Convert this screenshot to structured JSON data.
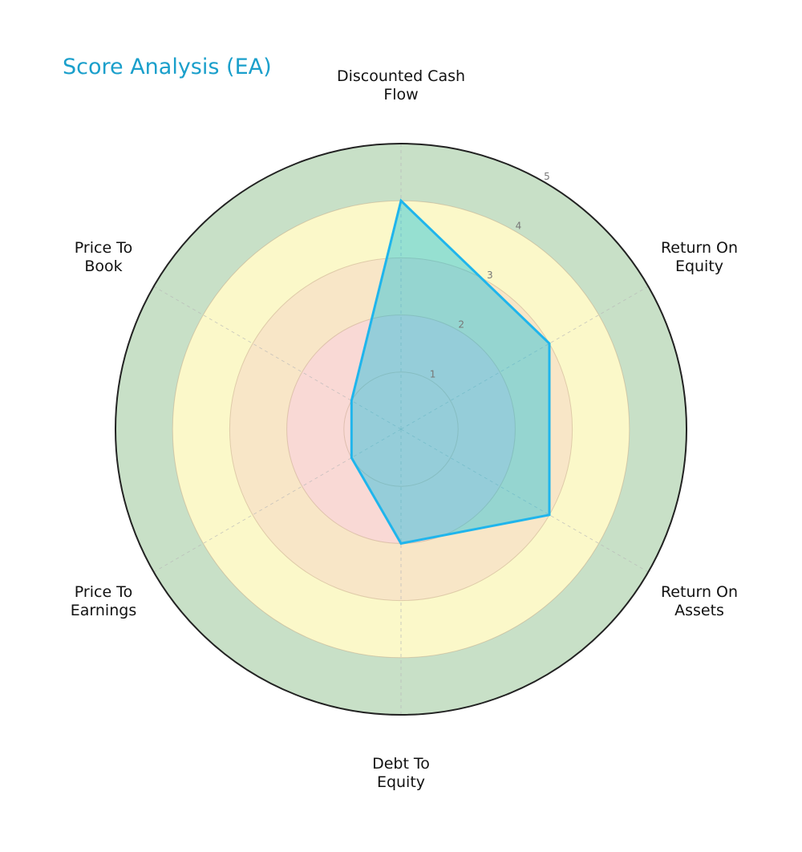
{
  "title": "Score Analysis (EA)",
  "chart_data": {
    "type": "radar",
    "title": "Score Analysis (EA)",
    "categories": [
      "Discounted Cash Flow",
      "Return On Equity",
      "Return On Assets",
      "Debt To Equity",
      "Price To Earnings",
      "Price To Book"
    ],
    "category_lines": [
      [
        "Discounted Cash",
        "Flow"
      ],
      [
        "Return On",
        "Equity"
      ],
      [
        "Return On",
        "Assets"
      ],
      [
        "Debt To",
        "Equity"
      ],
      [
        "Price To",
        "Earnings"
      ],
      [
        "Price To",
        "Book"
      ]
    ],
    "series": [
      {
        "name": "EA",
        "values": [
          4,
          3,
          3,
          2,
          1,
          1
        ]
      }
    ],
    "rlim": [
      0,
      5
    ],
    "r_ticks": [
      1,
      2,
      3,
      4,
      5
    ],
    "bands": [
      {
        "from": 0,
        "to": 2,
        "color": "#f9d9d5"
      },
      {
        "from": 2,
        "to": 3,
        "color": "#f8e6c7"
      },
      {
        "from": 3,
        "to": 4,
        "color": "#fbf8c9"
      },
      {
        "from": 4,
        "to": 5,
        "color": "#c8e0c7"
      }
    ],
    "grid": true,
    "colors": {
      "title": "#1a9fcb",
      "line": "#1fb5ec",
      "fill": "rgba(0, 188, 222, 0.40)",
      "outer_circle": "#222222",
      "grid": "#b8b8b8"
    }
  }
}
